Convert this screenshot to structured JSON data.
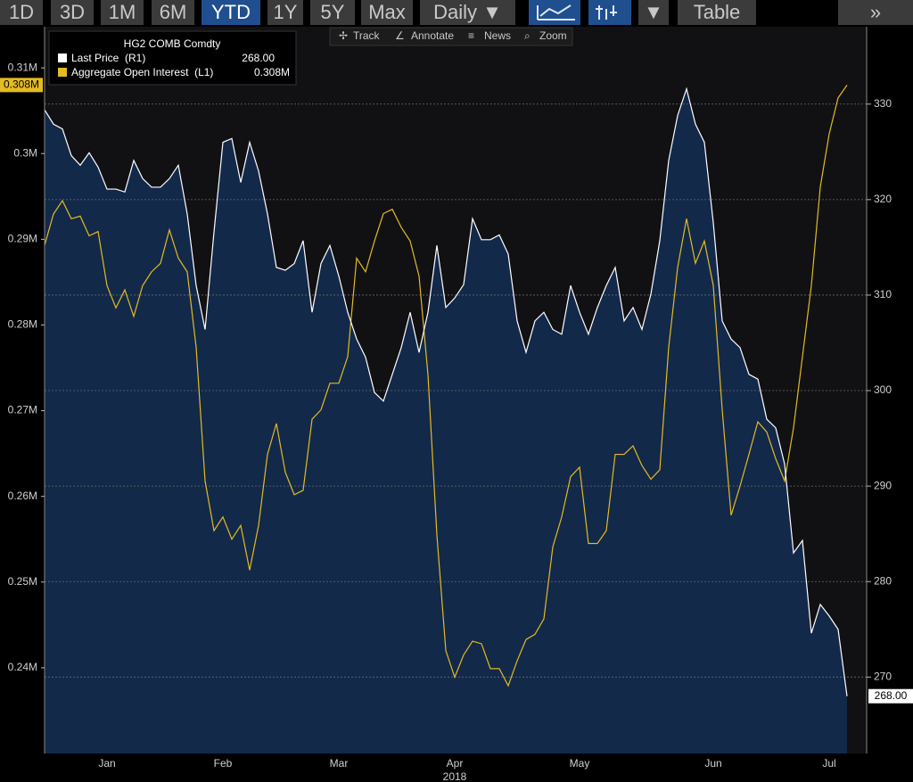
{
  "toolbar": {
    "buttons": [
      "1D",
      "3D",
      "1M",
      "6M",
      "YTD",
      "1Y",
      "5Y",
      "Max",
      "Daily ▼",
      "▼",
      "Table",
      "»"
    ]
  },
  "chart_toolbar": [
    "Track",
    "Annotate",
    "News",
    "Zoom"
  ],
  "chart_data": {
    "type": "line",
    "title": "HG2 COMB Comdty",
    "x_label": "2018",
    "categories": [
      null,
      null,
      null,
      null,
      null,
      null,
      null,
      "Jan",
      null,
      null,
      null,
      null,
      null,
      null,
      null,
      null,
      null,
      null,
      null,
      null,
      "Feb",
      null,
      null,
      null,
      null,
      null,
      null,
      null,
      null,
      null,
      null,
      null,
      null,
      "Mar",
      null,
      null,
      null,
      null,
      null,
      null,
      null,
      null,
      null,
      null,
      null,
      null,
      "Apr",
      null,
      null,
      null,
      null,
      null,
      null,
      null,
      null,
      null,
      null,
      null,
      null,
      null,
      "May",
      null,
      null,
      null,
      null,
      null,
      null,
      null,
      null,
      null,
      null,
      null,
      null,
      null,
      null,
      "Jun",
      null,
      null,
      null,
      null,
      null,
      null,
      null,
      null,
      null,
      null,
      null,
      null,
      "Jul",
      null,
      null
    ],
    "series": [
      {
        "name": "Last Price  (R1)",
        "color": "#ffffff",
        "axis": "y2",
        "values": [
          329.4,
          327.9,
          327.4,
          324.6,
          323.6,
          324.9,
          323.4,
          321.1,
          321.1,
          320.8,
          324.1,
          322.2,
          321.3,
          321.3,
          322.2,
          323.6,
          318.5,
          311.0,
          306.4,
          316.6,
          326.0,
          326.4,
          321.8,
          326.0,
          323.0,
          318.5,
          312.9,
          312.6,
          313.3,
          315.7,
          308.2,
          313.3,
          315.2,
          312.0,
          308.2,
          305.4,
          303.5,
          299.8,
          298.9,
          301.7,
          304.5,
          308.2,
          304.0,
          308.2,
          315.2,
          308.7,
          309.7,
          311.1,
          318.0,
          315.8,
          315.8,
          316.3,
          314.3,
          307.3,
          304.0,
          307.3,
          308.2,
          306.4,
          305.9,
          311.0,
          308.2,
          305.9,
          308.7,
          311.0,
          312.9,
          307.3,
          308.7,
          306.4,
          310.1,
          315.7,
          324.1,
          328.8,
          331.6,
          327.9,
          326.0,
          317.6,
          307.3,
          305.4,
          304.5,
          301.7,
          301.2,
          297.0,
          296.1,
          292.3,
          283.0,
          284.3,
          274.6,
          277.6,
          276.4,
          275.0,
          268.0
        ],
        "value_labels": [
          null,
          null,
          null,
          null,
          null,
          null,
          null,
          null,
          null,
          null,
          null,
          null,
          null,
          null,
          null,
          null,
          null,
          null,
          null,
          null,
          null,
          null,
          null,
          null,
          null,
          null,
          null,
          null,
          null,
          null,
          null,
          null,
          null,
          null,
          null,
          null,
          null,
          null,
          null,
          null,
          null,
          null,
          null,
          null,
          null,
          null,
          null,
          null,
          null,
          null,
          null,
          null,
          null,
          null,
          null,
          null,
          null,
          null,
          null,
          null,
          null,
          null,
          null,
          null,
          null,
          null,
          null,
          null,
          null,
          null,
          null,
          null,
          null,
          null,
          null,
          null,
          null,
          null,
          null,
          null,
          null,
          null,
          null,
          null,
          null,
          null,
          null,
          null,
          null,
          null,
          "268.00"
        ]
      },
      {
        "name": "Aggregate Open Interest  (L1)",
        "color": "#e3bb22",
        "axis": "y",
        "values": [
          289300,
          292950,
          294500,
          292400,
          292700,
          290400,
          290900,
          284600,
          282000,
          284100,
          281000,
          284600,
          286200,
          287200,
          291100,
          287800,
          286200,
          277400,
          261800,
          256000,
          257600,
          255000,
          256600,
          251400,
          256600,
          264900,
          268500,
          262800,
          260200,
          260700,
          269000,
          270100,
          273200,
          273200,
          276300,
          287800,
          286200,
          289800,
          293000,
          293500,
          291400,
          289800,
          285700,
          274200,
          255500,
          242000,
          238900,
          241500,
          243100,
          242800,
          239900,
          239900,
          237900,
          240800,
          243300,
          243900,
          245700,
          254100,
          257600,
          262300,
          263400,
          254500,
          254500,
          256000,
          264900,
          264900,
          265900,
          263600,
          262000,
          263100,
          277400,
          286700,
          292400,
          287200,
          289800,
          284600,
          270100,
          257800,
          261200,
          264900,
          268700,
          267500,
          264400,
          261800,
          268000,
          276300,
          284600,
          296100,
          302300,
          306500,
          308000
        ],
        "value_labels": [
          null,
          null,
          null,
          null,
          null,
          null,
          null,
          null,
          null,
          null,
          null,
          null,
          null,
          null,
          null,
          null,
          null,
          null,
          null,
          null,
          null,
          null,
          null,
          null,
          null,
          null,
          null,
          null,
          null,
          null,
          null,
          null,
          null,
          null,
          null,
          null,
          null,
          null,
          null,
          null,
          null,
          null,
          null,
          null,
          null,
          null,
          null,
          null,
          null,
          null,
          null,
          null,
          null,
          null,
          null,
          null,
          null,
          null,
          null,
          null,
          null,
          null,
          null,
          null,
          null,
          null,
          null,
          null,
          null,
          null,
          null,
          null,
          null,
          null,
          null,
          null,
          null,
          null,
          null,
          null,
          null,
          null,
          null,
          null,
          null,
          null,
          null,
          null,
          null,
          null,
          "0.308M"
        ]
      }
    ],
    "ylim": [
      230000,
      314800
    ],
    "yticks": [
      {
        "value": 240000,
        "label": "0.24M"
      },
      {
        "value": 250000,
        "label": "0.25M"
      },
      {
        "value": 260000,
        "label": "0.26M"
      },
      {
        "value": 270000,
        "label": "0.27M"
      },
      {
        "value": 280000,
        "label": "0.28M"
      },
      {
        "value": 290000,
        "label": "0.29M"
      },
      {
        "value": 300000,
        "label": "0.3M"
      },
      {
        "value": 310000,
        "label": "0.31M"
      }
    ],
    "y2lim": [
      262,
      338.1
    ],
    "y2ticks": [
      270,
      280,
      290,
      300,
      310,
      320,
      330
    ],
    "grid": true,
    "area_color": "#13294a",
    "background": "#111114"
  }
}
